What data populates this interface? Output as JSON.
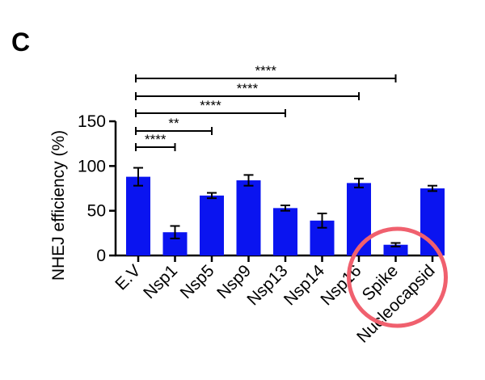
{
  "panel_label": "C",
  "chart_data": {
    "type": "bar",
    "title": "",
    "xlabel": "",
    "ylabel": "NHEJ efficiency (%)",
    "ylim": [
      0,
      150
    ],
    "yticks": [
      0,
      50,
      100,
      150
    ],
    "categories": [
      "E.V",
      "Nsp1",
      "Nsp5",
      "Nsp9",
      "Nsp13",
      "Nsp14",
      "Nsp16",
      "Spike",
      "Nucleocapsid"
    ],
    "values": [
      88,
      26,
      67,
      84,
      53,
      39,
      81,
      12,
      75
    ],
    "errors": [
      10,
      7,
      3,
      6,
      3,
      8,
      5,
      2,
      3
    ],
    "bar_color": "#0a14f0",
    "highlight": {
      "category": "Spike",
      "color": "#f0606e"
    },
    "significance": [
      {
        "from": "E.V",
        "to": "Nsp1",
        "label": "****"
      },
      {
        "from": "E.V",
        "to": "Nsp5",
        "label": "**"
      },
      {
        "from": "E.V",
        "to": "Nsp13",
        "label": "****"
      },
      {
        "from": "E.V",
        "to": "Nsp16",
        "label": "****"
      },
      {
        "from": "E.V",
        "to": "Spike",
        "label": "****"
      }
    ]
  }
}
